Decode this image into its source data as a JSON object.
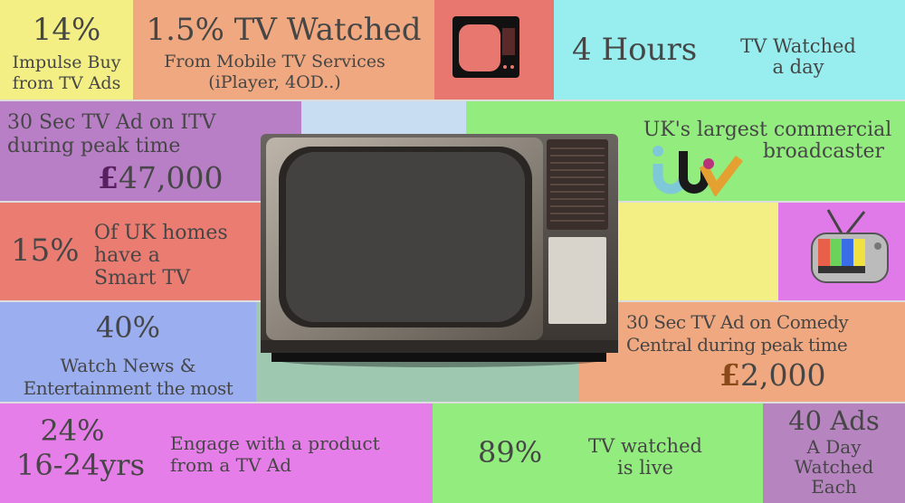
{
  "colors": {
    "yellow": "#f3ef85",
    "orange": "#efa87f",
    "red": "#e8776f",
    "cyan": "#98eeee",
    "purple": "#b87fc6",
    "lightblue": "#c8dcf2",
    "green": "#93ec7e",
    "magenta": "#e07ae8",
    "blue": "#9aaef0",
    "teal": "#9fc8b0",
    "pink": "#e57ee8",
    "text": "#464646"
  },
  "tiles": {
    "impulse": {
      "value": "14%",
      "label1": "Impulse Buy",
      "label2": "from TV Ads"
    },
    "mobile": {
      "value": "1.5% TV Watched",
      "label1": "From Mobile TV Services",
      "label2": "(iPlayer, 4OD..)"
    },
    "hours": {
      "value": "4 Hours",
      "label1": "TV Watched",
      "label2": "a day"
    },
    "itv_ad": {
      "label1": "30 Sec TV Ad on ITV",
      "label2": "during peak time",
      "currency": "£",
      "price": "47,000"
    },
    "itv": {
      "label1": "UK's largest commercial",
      "label2": "broadcaster",
      "logo": "itv"
    },
    "smart": {
      "value": "15%",
      "label1": "Of UK homes",
      "label2": "have a",
      "label3": "Smart TV"
    },
    "news": {
      "value": "40%",
      "label1": "Watch News &",
      "label2": "Entertainment the most"
    },
    "comedy": {
      "label1": "30 Sec TV Ad on Comedy",
      "label2": "Central during peak time",
      "currency": "£",
      "price": "2,000"
    },
    "engage": {
      "value1": "24%",
      "value2": "16-24yrs",
      "label1": "Engage with a product",
      "label2": "from a TV Ad"
    },
    "live": {
      "value": "89%",
      "label1": "TV watched",
      "label2": "is live"
    },
    "ads": {
      "value": "40 Ads",
      "label1": "A Day",
      "label2": "Watched",
      "label3": "Each"
    }
  },
  "icons": [
    "small-tv-icon",
    "retro-tv-illustration",
    "cartoon-tv-icon"
  ]
}
